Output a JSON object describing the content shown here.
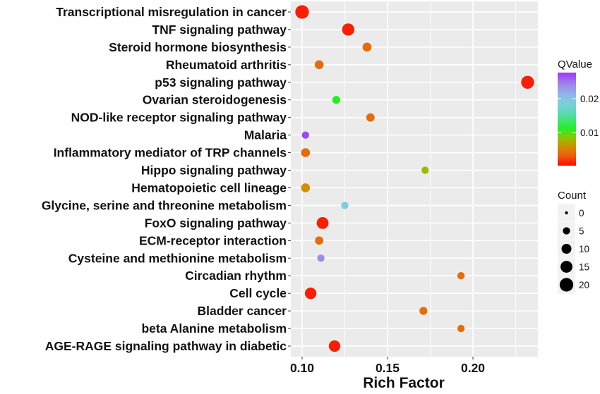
{
  "chart_data": {
    "type": "scatter",
    "title": "",
    "xlabel": "Rich  Factor",
    "ylabel": "",
    "xlim": [
      0.0934,
      0.238
    ],
    "xticks": [
      0.1,
      0.15,
      0.2
    ],
    "xtick_labels": [
      "0.10",
      "0.15",
      "0.20"
    ],
    "grid": true,
    "categories": [
      "Transcriptional misregulation in cancer",
      "TNF signaling pathway",
      "Steroid hormone biosynthesis",
      "Rheumatoid arthritis",
      "p53 signaling pathway",
      "Ovarian steroidogenesis",
      "NOD-like receptor signaling pathway",
      "Malaria",
      "Inflammatory mediator of TRP channels",
      "Hippo signaling pathway",
      "Hematopoietic cell lineage",
      "Glycine, serine and threonine metabolism",
      "FoxO signaling pathway",
      "ECM-receptor interaction",
      "Cysteine and methionine metabolism",
      "Circadian rhythm",
      "Cell cycle",
      "Bladder cancer",
      "beta Alanine metabolism",
      "AGE-RAGE signaling pathway in diabetic"
    ],
    "rich_factor": [
      0.1,
      0.127,
      0.138,
      0.11,
      0.232,
      0.12,
      0.14,
      0.102,
      0.102,
      0.172,
      0.102,
      0.125,
      0.112,
      0.11,
      0.111,
      0.193,
      0.105,
      0.171,
      0.193,
      0.119
    ],
    "qvalue": [
      0.001,
      0.001,
      0.004,
      0.004,
      0.001,
      0.011,
      0.004,
      0.027,
      0.004,
      0.008,
      0.006,
      0.019,
      0.001,
      0.004,
      0.024,
      0.004,
      0.001,
      0.004,
      0.004,
      0.001
    ],
    "count": [
      20,
      16,
      8,
      8,
      18,
      6,
      7,
      5,
      8,
      5,
      8,
      5,
      15,
      7,
      5,
      5,
      14,
      6,
      5,
      14
    ],
    "color_legend": {
      "title": "QValue",
      "range": [
        0,
        0.028
      ],
      "ticks": [
        0.01,
        0.02
      ],
      "tick_labels": [
        "0.01",
        "0.02"
      ],
      "colors": [
        "#FF0000",
        "#F05A10",
        "#D09000",
        "#7FD000",
        "#20F020",
        "#60D8C0",
        "#88C8E8",
        "#A08CE8",
        "#9933FF"
      ],
      "placement": "right"
    },
    "size_legend": {
      "title": "Count",
      "values": [
        0,
        5,
        10,
        15,
        20
      ],
      "labels": [
        "0",
        "5",
        "10",
        "15",
        "20"
      ],
      "placement": "right"
    },
    "panel_background": "#EBEBEB"
  }
}
